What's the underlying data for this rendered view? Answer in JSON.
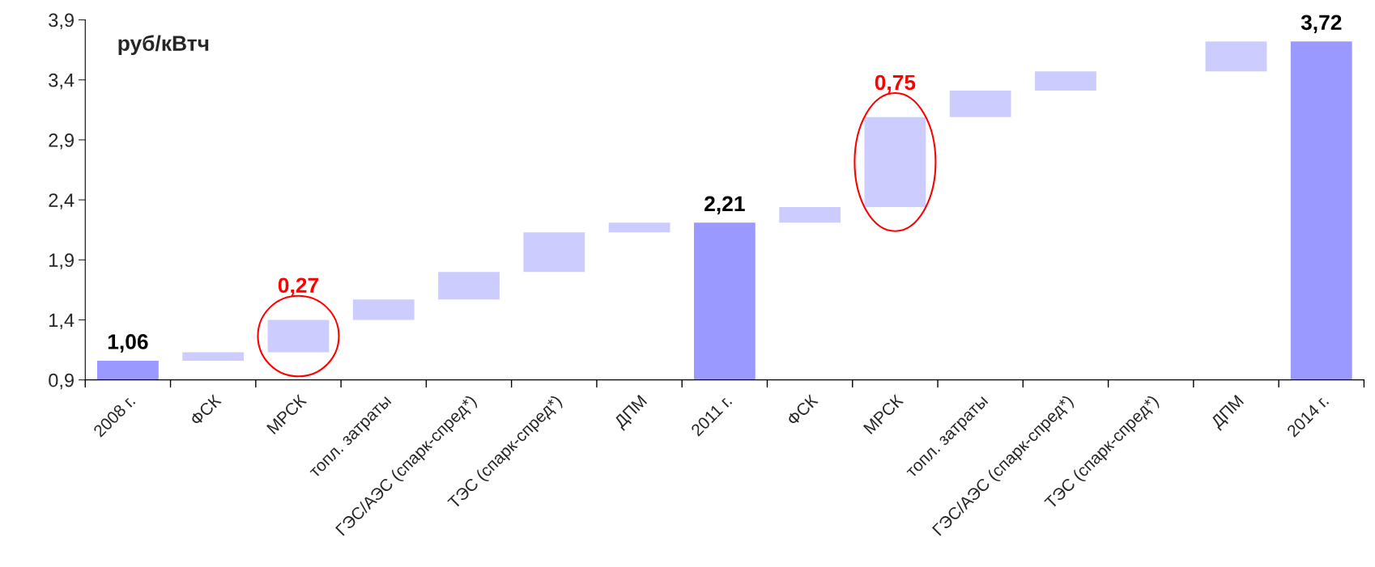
{
  "chart_data": {
    "type": "bar",
    "ylabel": "руб/кВтч",
    "categories": [
      "2008 г.",
      "ФСК",
      "МРСК",
      "топл. затраты",
      "ГЭС/АЭС (спарк-спред*)",
      "ТЭС (спарк-спред*)",
      "ДПМ",
      "2011 г.",
      "ФСК",
      "МРСК",
      "топл. затраты",
      "ГЭС/АЭС (спарк-спред*)",
      "ТЭС (спарк-спред*)",
      "ДПМ",
      "2014 г."
    ],
    "values": [
      1.06,
      0.07,
      0.27,
      0.17,
      0.23,
      0.33,
      0.08,
      2.21,
      0.13,
      0.75,
      0.22,
      0.16,
      null,
      0.25,
      3.72
    ],
    "base": [
      null,
      1.06,
      1.13,
      1.4,
      1.57,
      1.8,
      2.13,
      null,
      2.21,
      2.34,
      3.09,
      3.31,
      null,
      3.47,
      null
    ],
    "colors": [
      "#9999ff",
      "#ccccff",
      "#ccccff",
      "#ccccff",
      "#ccccff",
      "#ccccff",
      "#ccccff",
      "#9999ff",
      "#ccccff",
      "#ccccff",
      "#ccccff",
      "#ccccff",
      "#ccccff",
      "#ccccff",
      "#9999ff"
    ],
    "value_labels": [
      "1,06",
      null,
      "0,27",
      null,
      null,
      null,
      null,
      "2,21",
      null,
      "0,75",
      null,
      null,
      null,
      null,
      "3,72"
    ],
    "ylim": [
      0.9,
      3.9
    ],
    "yticks": [
      {
        "value": 0.9,
        "label": "0,9"
      },
      {
        "value": 1.4,
        "label": "1,4"
      },
      {
        "value": 1.9,
        "label": "1,9"
      },
      {
        "value": 2.4,
        "label": "2,4"
      },
      {
        "value": 2.9,
        "label": "2,9"
      },
      {
        "value": 3.4,
        "label": "3,4"
      },
      {
        "value": 3.9,
        "label": "3,9"
      }
    ]
  }
}
